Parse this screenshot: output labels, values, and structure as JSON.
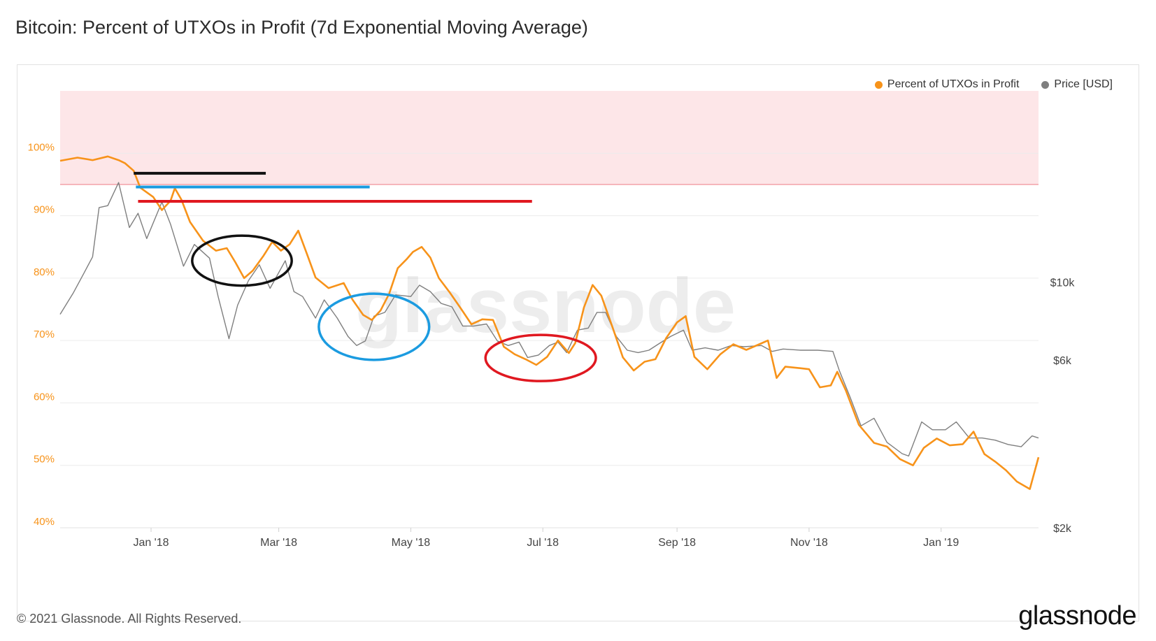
{
  "page": {
    "title": "Bitcoin: Percent of UTXOs in Profit (7d Exponential Moving Average)",
    "copyright": "© 2021 Glassnode. All Rights Reserved.",
    "logo": "glassnode",
    "watermark": "glassnode"
  },
  "legend": [
    {
      "label": "Percent of UTXOs in Profit",
      "color": "#f7931a"
    },
    {
      "label": "Price [USD]",
      "color": "#7f7f7f"
    }
  ],
  "chart_data": {
    "type": "line",
    "title": "Bitcoin: Percent of UTXOs in Profit (7d Exponential Moving Average)",
    "x_ticks": [
      "Jan '18",
      "Mar '18",
      "May '18",
      "Jul '18",
      "Sep '18",
      "Nov '18",
      "Jan '19"
    ],
    "x_range": [
      "2017-11-20",
      "2019-02-15"
    ],
    "y_left": {
      "ticks": [
        "100%",
        "90%",
        "80%",
        "70%",
        "60%",
        "50%",
        "40%"
      ],
      "range": [
        40,
        110
      ],
      "color": "#f7931a"
    },
    "y_right": {
      "ticks": [
        "$10k",
        "$6k",
        "$2k"
      ],
      "scale": "log",
      "range": [
        2000,
        35000
      ]
    },
    "threshold": {
      "value": 95,
      "band": [
        95,
        110
      ],
      "band_color": "#fde6e8",
      "line_color": "#f3a0a8"
    },
    "grid": true,
    "legend_position": "top-right",
    "series": [
      {
        "name": "Percent of UTXOs in Profit",
        "axis": "left",
        "color": "#f7931a",
        "points": [
          [
            "2017-11-20",
            98.8
          ],
          [
            "2017-11-28",
            99.3
          ],
          [
            "2017-12-05",
            98.9
          ],
          [
            "2017-12-12",
            99.5
          ],
          [
            "2017-12-17",
            98.9
          ],
          [
            "2017-12-20",
            98.4
          ],
          [
            "2017-12-24",
            97.2
          ],
          [
            "2017-12-27",
            94.5
          ],
          [
            "2018-01-02",
            93.0
          ],
          [
            "2018-01-06",
            90.9
          ],
          [
            "2018-01-10",
            92.4
          ],
          [
            "2018-01-12",
            94.4
          ],
          [
            "2018-01-15",
            92.6
          ],
          [
            "2018-01-19",
            89.0
          ],
          [
            "2018-01-25",
            86.0
          ],
          [
            "2018-01-31",
            84.4
          ],
          [
            "2018-02-05",
            84.8
          ],
          [
            "2018-02-09",
            82.5
          ],
          [
            "2018-02-13",
            80.0
          ],
          [
            "2018-02-17",
            81.2
          ],
          [
            "2018-02-22",
            83.6
          ],
          [
            "2018-02-26",
            85.8
          ],
          [
            "2018-03-02",
            84.4
          ],
          [
            "2018-03-06",
            85.4
          ],
          [
            "2018-03-10",
            87.6
          ],
          [
            "2018-03-14",
            83.9
          ],
          [
            "2018-03-18",
            80.1
          ],
          [
            "2018-03-24",
            78.4
          ],
          [
            "2018-03-31",
            79.2
          ],
          [
            "2018-04-04",
            76.6
          ],
          [
            "2018-04-09",
            74.1
          ],
          [
            "2018-04-13",
            73.3
          ],
          [
            "2018-04-17",
            74.8
          ],
          [
            "2018-04-21",
            77.5
          ],
          [
            "2018-04-25",
            81.6
          ],
          [
            "2018-04-29",
            83.0
          ],
          [
            "2018-05-02",
            84.2
          ],
          [
            "2018-05-06",
            85.0
          ],
          [
            "2018-05-10",
            83.3
          ],
          [
            "2018-05-14",
            80.0
          ],
          [
            "2018-05-19",
            77.7
          ],
          [
            "2018-05-24",
            75.2
          ],
          [
            "2018-05-29",
            72.6
          ],
          [
            "2018-06-03",
            73.4
          ],
          [
            "2018-06-08",
            73.3
          ],
          [
            "2018-06-13",
            69.0
          ],
          [
            "2018-06-18",
            67.8
          ],
          [
            "2018-06-23",
            67.0
          ],
          [
            "2018-06-28",
            66.1
          ],
          [
            "2018-07-03",
            67.4
          ],
          [
            "2018-07-08",
            70.0
          ],
          [
            "2018-07-13",
            68.0
          ],
          [
            "2018-07-16",
            69.6
          ],
          [
            "2018-07-20",
            75.3
          ],
          [
            "2018-07-24",
            78.9
          ],
          [
            "2018-07-28",
            77.2
          ],
          [
            "2018-08-02",
            72.3
          ],
          [
            "2018-08-07",
            67.3
          ],
          [
            "2018-08-12",
            65.2
          ],
          [
            "2018-08-17",
            66.6
          ],
          [
            "2018-08-22",
            67.0
          ],
          [
            "2018-08-27",
            70.4
          ],
          [
            "2018-09-01",
            72.9
          ],
          [
            "2018-09-05",
            73.9
          ],
          [
            "2018-09-09",
            67.4
          ],
          [
            "2018-09-15",
            65.4
          ],
          [
            "2018-09-21",
            67.8
          ],
          [
            "2018-09-27",
            69.4
          ],
          [
            "2018-10-03",
            68.5
          ],
          [
            "2018-10-09",
            69.4
          ],
          [
            "2018-10-13",
            70.0
          ],
          [
            "2018-10-17",
            64.0
          ],
          [
            "2018-10-21",
            65.8
          ],
          [
            "2018-10-27",
            65.6
          ],
          [
            "2018-11-01",
            65.4
          ],
          [
            "2018-11-06",
            62.5
          ],
          [
            "2018-11-11",
            62.8
          ],
          [
            "2018-11-14",
            65.0
          ],
          [
            "2018-11-18",
            62.0
          ],
          [
            "2018-11-24",
            56.5
          ],
          [
            "2018-12-01",
            53.6
          ],
          [
            "2018-12-07",
            53.0
          ],
          [
            "2018-12-13",
            51.0
          ],
          [
            "2018-12-19",
            50.0
          ],
          [
            "2018-12-24",
            52.8
          ],
          [
            "2018-12-30",
            54.3
          ],
          [
            "2019-01-05",
            53.2
          ],
          [
            "2019-01-11",
            53.4
          ],
          [
            "2019-01-16",
            55.4
          ],
          [
            "2019-01-21",
            51.8
          ],
          [
            "2019-01-26",
            50.6
          ],
          [
            "2019-01-31",
            49.2
          ],
          [
            "2019-02-05",
            47.4
          ],
          [
            "2019-02-11",
            46.2
          ],
          [
            "2019-02-15",
            51.3
          ]
        ]
      },
      {
        "name": "Price [USD]",
        "axis": "right",
        "color": "#7f7f7f",
        "points": [
          [
            "2017-11-20",
            8100
          ],
          [
            "2017-11-26",
            9300
          ],
          [
            "2017-12-01",
            10600
          ],
          [
            "2017-12-05",
            11800
          ],
          [
            "2017-12-08",
            16300
          ],
          [
            "2017-12-12",
            16500
          ],
          [
            "2017-12-17",
            19200
          ],
          [
            "2017-12-22",
            14300
          ],
          [
            "2017-12-26",
            15700
          ],
          [
            "2017-12-30",
            13300
          ],
          [
            "2018-01-06",
            16900
          ],
          [
            "2018-01-10",
            14600
          ],
          [
            "2018-01-16",
            11100
          ],
          [
            "2018-01-21",
            12800
          ],
          [
            "2018-01-28",
            11700
          ],
          [
            "2018-02-01",
            9100
          ],
          [
            "2018-02-06",
            6900
          ],
          [
            "2018-02-10",
            8600
          ],
          [
            "2018-02-15",
            10100
          ],
          [
            "2018-02-20",
            11200
          ],
          [
            "2018-02-25",
            9600
          ],
          [
            "2018-03-04",
            11500
          ],
          [
            "2018-03-08",
            9400
          ],
          [
            "2018-03-12",
            9100
          ],
          [
            "2018-03-18",
            7900
          ],
          [
            "2018-03-22",
            8900
          ],
          [
            "2018-03-28",
            7900
          ],
          [
            "2018-04-02",
            7000
          ],
          [
            "2018-04-06",
            6600
          ],
          [
            "2018-04-10",
            6800
          ],
          [
            "2018-04-14",
            8000
          ],
          [
            "2018-04-19",
            8200
          ],
          [
            "2018-04-24",
            9200
          ],
          [
            "2018-05-01",
            9100
          ],
          [
            "2018-05-05",
            9800
          ],
          [
            "2018-05-10",
            9400
          ],
          [
            "2018-05-15",
            8700
          ],
          [
            "2018-05-20",
            8500
          ],
          [
            "2018-05-25",
            7500
          ],
          [
            "2018-05-30",
            7500
          ],
          [
            "2018-06-05",
            7600
          ],
          [
            "2018-06-10",
            6800
          ],
          [
            "2018-06-15",
            6600
          ],
          [
            "2018-06-20",
            6750
          ],
          [
            "2018-06-24",
            6100
          ],
          [
            "2018-06-29",
            6200
          ],
          [
            "2018-07-04",
            6600
          ],
          [
            "2018-07-08",
            6750
          ],
          [
            "2018-07-12",
            6300
          ],
          [
            "2018-07-17",
            7300
          ],
          [
            "2018-07-22",
            7400
          ],
          [
            "2018-07-26",
            8200
          ],
          [
            "2018-07-30",
            8200
          ],
          [
            "2018-08-04",
            7000
          ],
          [
            "2018-08-09",
            6400
          ],
          [
            "2018-08-14",
            6300
          ],
          [
            "2018-08-19",
            6400
          ],
          [
            "2018-08-24",
            6700
          ],
          [
            "2018-08-29",
            7000
          ],
          [
            "2018-09-04",
            7300
          ],
          [
            "2018-09-08",
            6400
          ],
          [
            "2018-09-14",
            6500
          ],
          [
            "2018-09-20",
            6400
          ],
          [
            "2018-09-26",
            6600
          ],
          [
            "2018-10-02",
            6550
          ],
          [
            "2018-10-10",
            6600
          ],
          [
            "2018-10-15",
            6350
          ],
          [
            "2018-10-20",
            6450
          ],
          [
            "2018-10-28",
            6400
          ],
          [
            "2018-11-05",
            6400
          ],
          [
            "2018-11-12",
            6350
          ],
          [
            "2018-11-15",
            5600
          ],
          [
            "2018-11-20",
            4700
          ],
          [
            "2018-11-25",
            3900
          ],
          [
            "2018-12-01",
            4100
          ],
          [
            "2018-12-07",
            3500
          ],
          [
            "2018-12-14",
            3250
          ],
          [
            "2018-12-17",
            3200
          ],
          [
            "2018-12-23",
            4000
          ],
          [
            "2018-12-28",
            3800
          ],
          [
            "2019-01-03",
            3800
          ],
          [
            "2019-01-08",
            4000
          ],
          [
            "2019-01-14",
            3600
          ],
          [
            "2019-01-20",
            3600
          ],
          [
            "2019-01-26",
            3550
          ],
          [
            "2019-02-01",
            3450
          ],
          [
            "2019-02-07",
            3400
          ],
          [
            "2019-02-12",
            3650
          ],
          [
            "2019-02-15",
            3600
          ]
        ]
      }
    ],
    "annotations": {
      "horizontal_lines": [
        {
          "color": "#111111",
          "y": 96.8,
          "from": "2017-12-24",
          "to": "2018-02-23"
        },
        {
          "color": "#1b9be0",
          "y": 94.6,
          "from": "2017-12-25",
          "to": "2018-04-12"
        },
        {
          "color": "#e01820",
          "y": 92.3,
          "from": "2017-12-26",
          "to": "2018-06-26"
        }
      ],
      "ellipses": [
        {
          "color": "#111111",
          "center_date": "2018-02-12",
          "center_value": 82.8,
          "width_days": 46,
          "height_value": 8.0
        },
        {
          "color": "#1b9be0",
          "center_date": "2018-04-14",
          "center_value": 72.2,
          "width_days": 51,
          "height_value": 10.6
        },
        {
          "color": "#e01820",
          "center_date": "2018-06-30",
          "center_value": 67.2,
          "width_days": 51,
          "height_value": 7.4
        }
      ]
    }
  }
}
